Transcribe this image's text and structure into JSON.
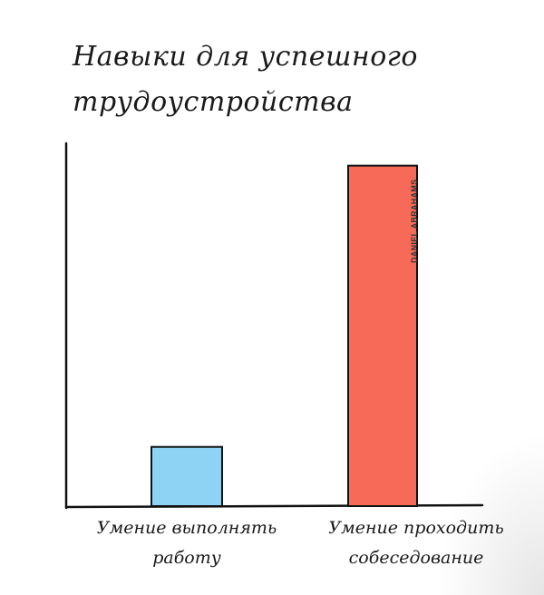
{
  "chart_data": {
    "type": "bar",
    "title_lines": [
      "Навыки для успешного",
      "трудоустройства"
    ],
    "categories": [
      [
        "Умение выполнять",
        "работу"
      ],
      [
        "Умение проходить",
        "собеседование"
      ]
    ],
    "values": [
      16,
      92
    ],
    "ylim": [
      0,
      100
    ],
    "colors": [
      "#8fd3f4",
      "#f86a58"
    ],
    "grid": false
  },
  "watermark": "DANIEL ABRAHAMS"
}
